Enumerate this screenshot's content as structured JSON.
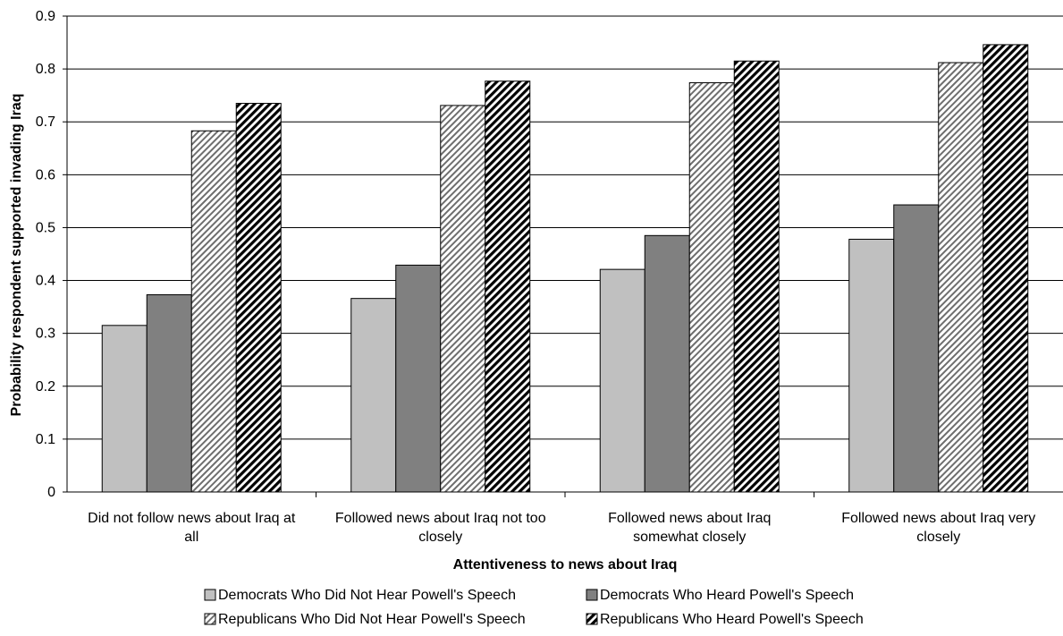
{
  "chart_data": {
    "type": "bar",
    "title": "",
    "xlabel": "Attentiveness to news about Iraq",
    "ylabel": "Probability respondent supported invading Iraq",
    "ylim": [
      0,
      0.9
    ],
    "yticks": [
      0,
      0.1,
      0.2,
      0.3,
      0.4,
      0.5,
      0.6,
      0.7,
      0.8,
      0.9
    ],
    "grid": true,
    "legend_position": "bottom",
    "categories": [
      [
        "Did not follow news about Iraq at",
        "all"
      ],
      [
        "Followed news about Iraq not too",
        "closely"
      ],
      [
        "Followed news about Iraq",
        "somewhat closely"
      ],
      [
        "Followed news about Iraq very",
        "closely"
      ]
    ],
    "series": [
      {
        "name": "Democrats Who Did Not Hear Powell's Speech",
        "values": [
          0.315,
          0.366,
          0.421,
          0.478
        ],
        "color": "#c0c0c0",
        "pattern": "solid"
      },
      {
        "name": "Democrats Who Heard Powell's Speech",
        "values": [
          0.373,
          0.429,
          0.485,
          0.543
        ],
        "color": "#808080",
        "pattern": "solid"
      },
      {
        "name": "Republicans Who Did Not Hear Powell's Speech",
        "values": [
          0.683,
          0.731,
          0.774,
          0.812
        ],
        "color": "#666666",
        "pattern": "light-diagonal"
      },
      {
        "name": "Republicans Who Heard Powell's Speech",
        "values": [
          0.735,
          0.777,
          0.815,
          0.846
        ],
        "color": "#000000",
        "pattern": "dark-diagonal"
      }
    ]
  }
}
